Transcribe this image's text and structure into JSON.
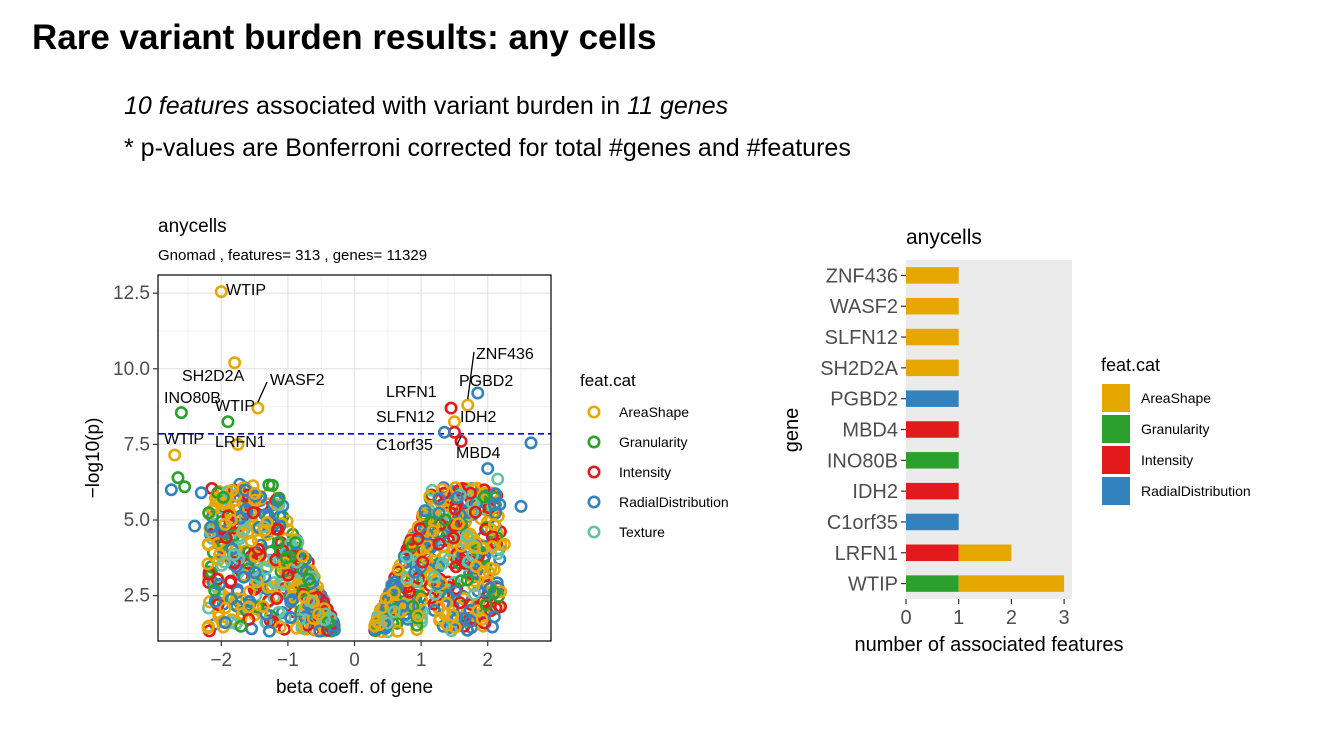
{
  "slide": {
    "title": "Rare variant burden results: any cells",
    "subtitle1": {
      "part1": "10 features",
      "part2": " associated with variant burden in ",
      "part3": "11 genes"
    },
    "subtitle2": "* p-values are Bonferroni corrected for total #genes and #features"
  },
  "chart_data": [
    {
      "type": "scatter",
      "title": "anycells",
      "subtitle": "Gnomad , features= 313 , genes= 11329",
      "xlabel": "beta coeff. of gene",
      "ylabel": "−log10(p)",
      "xlim": [
        -2.95,
        2.95
      ],
      "ylim": [
        1.0,
        13.1
      ],
      "xticks": [
        -2,
        -1,
        0,
        1,
        2
      ],
      "xtick_labels": [
        "−2",
        "−1",
        "0",
        "1",
        "2"
      ],
      "yticks": [
        2.5,
        5.0,
        7.5,
        10.0,
        12.5
      ],
      "ytick_labels": [
        "2.5",
        "5.0",
        "7.5",
        "10.0",
        "12.5"
      ],
      "grid": true,
      "threshold_line": {
        "y": 7.85,
        "color": "#0000FF",
        "style": "dashed"
      },
      "legend": {
        "title": "feat.cat",
        "placement": "right",
        "entries": [
          {
            "name": "AreaShape",
            "color": "#E6A800"
          },
          {
            "name": "Granularity",
            "color": "#2CA02C"
          },
          {
            "name": "Intensity",
            "color": "#E31A1C"
          },
          {
            "name": "RadialDistribution",
            "color": "#3182BD"
          },
          {
            "name": "Texture",
            "color": "#66C2A5"
          }
        ]
      },
      "labeled_points": [
        {
          "label": "WTIP",
          "x": -2.0,
          "y": 12.55,
          "cat": "AreaShape"
        },
        {
          "label": "SH2D2A",
          "x": -1.8,
          "y": 10.2,
          "cat": "AreaShape"
        },
        {
          "label": "WASF2",
          "x": -1.45,
          "y": 8.7,
          "cat": "AreaShape"
        },
        {
          "label": "INO80B",
          "x": -2.6,
          "y": 8.55,
          "cat": "Granularity"
        },
        {
          "label": "WTIP",
          "x": -1.9,
          "y": 8.25,
          "cat": "Granularity"
        },
        {
          "label": "WTIP",
          "x": -2.7,
          "y": 7.15,
          "cat": "AreaShape"
        },
        {
          "label": "LRFN1",
          "x": -1.75,
          "y": 7.5,
          "cat": "AreaShape"
        },
        {
          "label": "ZNF436",
          "x": 1.7,
          "y": 8.8,
          "cat": "AreaShape"
        },
        {
          "label": "PGBD2",
          "x": 1.85,
          "y": 9.2,
          "cat": "RadialDistribution"
        },
        {
          "label": "LRFN1",
          "x": 1.45,
          "y": 8.7,
          "cat": "Intensity"
        },
        {
          "label": "SLFN12",
          "x": 1.5,
          "y": 8.25,
          "cat": "AreaShape"
        },
        {
          "label": "IDH2",
          "x": 1.5,
          "y": 7.9,
          "cat": "Intensity"
        },
        {
          "label": "C1orf35",
          "x": 1.35,
          "y": 7.9,
          "cat": "RadialDistribution"
        },
        {
          "label": "MBD4",
          "x": 1.6,
          "y": 7.6,
          "cat": "Intensity"
        }
      ],
      "extra_points": [
        {
          "x": 2.65,
          "y": 7.55,
          "cat": "RadialDistribution"
        },
        {
          "x": 2.0,
          "y": 6.7,
          "cat": "RadialDistribution"
        },
        {
          "x": -2.75,
          "y": 6.0,
          "cat": "RadialDistribution"
        },
        {
          "x": -2.55,
          "y": 6.1,
          "cat": "Granularity"
        },
        {
          "x": -2.65,
          "y": 6.4,
          "cat": "Granularity"
        },
        {
          "x": -2.3,
          "y": 5.9,
          "cat": "RadialDistribution"
        },
        {
          "x": -2.4,
          "y": 4.8,
          "cat": "RadialDistribution"
        },
        {
          "x": 2.5,
          "y": 5.45,
          "cat": "RadialDistribution"
        },
        {
          "x": 2.25,
          "y": 4.2,
          "cat": "AreaShape"
        },
        {
          "x": 2.1,
          "y": 4.85,
          "cat": "AreaShape"
        },
        {
          "x": 2.1,
          "y": 2.6,
          "cat": "Granularity"
        },
        {
          "x": 2.1,
          "y": 1.8,
          "cat": "RadialDistribution"
        },
        {
          "x": -2.2,
          "y": 3.55,
          "cat": "AreaShape"
        },
        {
          "x": -1.85,
          "y": 5.0,
          "cat": "AreaShape"
        },
        {
          "x": 2.15,
          "y": 6.35,
          "cat": "Texture"
        },
        {
          "x": -1.55,
          "y": 4.3,
          "cat": "AreaShape"
        }
      ],
      "cloud": {
        "left_x_range": [
          -2.2,
          -0.3
        ],
        "right_x_range": [
          0.3,
          2.2
        ],
        "y_range": [
          1.3,
          6.0
        ],
        "note_peak_y": {
          "left": 6.2,
          "right": 6.1
        }
      }
    },
    {
      "type": "bar",
      "orientation": "horizontal",
      "stacked": true,
      "title": "anycells",
      "xlabel": "number of associated features",
      "ylabel": "gene",
      "xlim": [
        0,
        3.15
      ],
      "xticks": [
        0,
        1,
        2,
        3
      ],
      "xtick_labels": [
        "0",
        "1",
        "2",
        "3"
      ],
      "grid": false,
      "panel_background": "#EBEBEB",
      "categories": [
        "ZNF436",
        "WASF2",
        "SLFN12",
        "SH2D2A",
        "PGBD2",
        "MBD4",
        "INO80B",
        "IDH2",
        "C1orf35",
        "LRFN1",
        "WTIP"
      ],
      "series": [
        {
          "name": "AreaShape",
          "color": "#E6A800",
          "values": [
            1,
            1,
            1,
            1,
            0,
            0,
            0,
            0,
            0,
            1,
            2
          ]
        },
        {
          "name": "Granularity",
          "color": "#2CA02C",
          "values": [
            0,
            0,
            0,
            0,
            0,
            0,
            1,
            0,
            0,
            0,
            1
          ]
        },
        {
          "name": "Intensity",
          "color": "#E31A1C",
          "values": [
            0,
            0,
            0,
            0,
            0,
            1,
            0,
            1,
            0,
            1,
            0
          ]
        },
        {
          "name": "RadialDistribution",
          "color": "#3182BD",
          "values": [
            0,
            0,
            0,
            0,
            1,
            0,
            0,
            0,
            1,
            0,
            0
          ]
        }
      ],
      "stack_order_left_to_right": [
        "Granularity",
        "Intensity",
        "RadialDistribution",
        "AreaShape"
      ],
      "legend": {
        "title": "feat.cat",
        "placement": "right",
        "entries": [
          "AreaShape",
          "Granularity",
          "Intensity",
          "RadialDistribution"
        ]
      }
    }
  ]
}
